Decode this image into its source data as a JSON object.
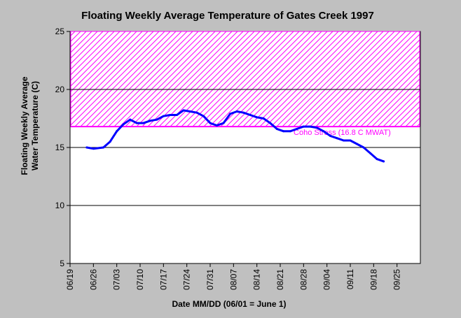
{
  "chart_data": {
    "type": "line",
    "title": "Floating Weekly Average Temperature of Gates Creek 1997",
    "xlabel": "Date MM/DD (06/01 = June 1)",
    "ylabel_lines": [
      "Floating Weekly Average",
      "Water Temperature (C)"
    ],
    "x_ticks": [
      "06/19",
      "06/26",
      "07/03",
      "07/10",
      "07/17",
      "07/24",
      "07/31",
      "08/07",
      "08/14",
      "08/21",
      "08/28",
      "09/04",
      "09/11",
      "09/18",
      "09/25"
    ],
    "xlim": [
      "06/19",
      "10/02"
    ],
    "ylim": [
      5,
      25
    ],
    "y_ticks": [
      5,
      10,
      15,
      20,
      25
    ],
    "grid": "horizontal",
    "threshold": {
      "label": "Coho Stress (16.8 C MWAT)",
      "value": 16.8,
      "color": "#ff00ff"
    },
    "series": [
      {
        "color": "#0000ff",
        "x": [
          "06/24",
          "06/26",
          "06/29",
          "07/01",
          "07/03",
          "07/05",
          "07/07",
          "07/09",
          "07/11",
          "07/13",
          "07/15",
          "07/17",
          "07/19",
          "07/21",
          "07/23",
          "07/25",
          "07/27",
          "07/29",
          "07/31",
          "08/02",
          "08/04",
          "08/06",
          "08/08",
          "08/10",
          "08/12",
          "08/14",
          "08/16",
          "08/18",
          "08/20",
          "08/22",
          "08/24",
          "08/26",
          "08/28",
          "08/30",
          "09/01",
          "09/03",
          "09/05",
          "09/07",
          "09/09",
          "09/11",
          "09/13",
          "09/15",
          "09/17",
          "09/19",
          "09/21"
        ],
        "y": [
          15.0,
          14.9,
          15.0,
          15.5,
          16.4,
          17.0,
          17.4,
          17.1,
          17.1,
          17.3,
          17.4,
          17.7,
          17.8,
          17.8,
          18.2,
          18.1,
          18.0,
          17.7,
          17.1,
          16.9,
          17.1,
          17.9,
          18.1,
          18.0,
          17.8,
          17.6,
          17.5,
          17.1,
          16.6,
          16.4,
          16.4,
          16.6,
          16.8,
          16.8,
          16.7,
          16.4,
          16.0,
          15.8,
          15.6,
          15.6,
          15.3,
          15.0,
          14.5,
          14.0,
          13.8
        ]
      }
    ]
  }
}
